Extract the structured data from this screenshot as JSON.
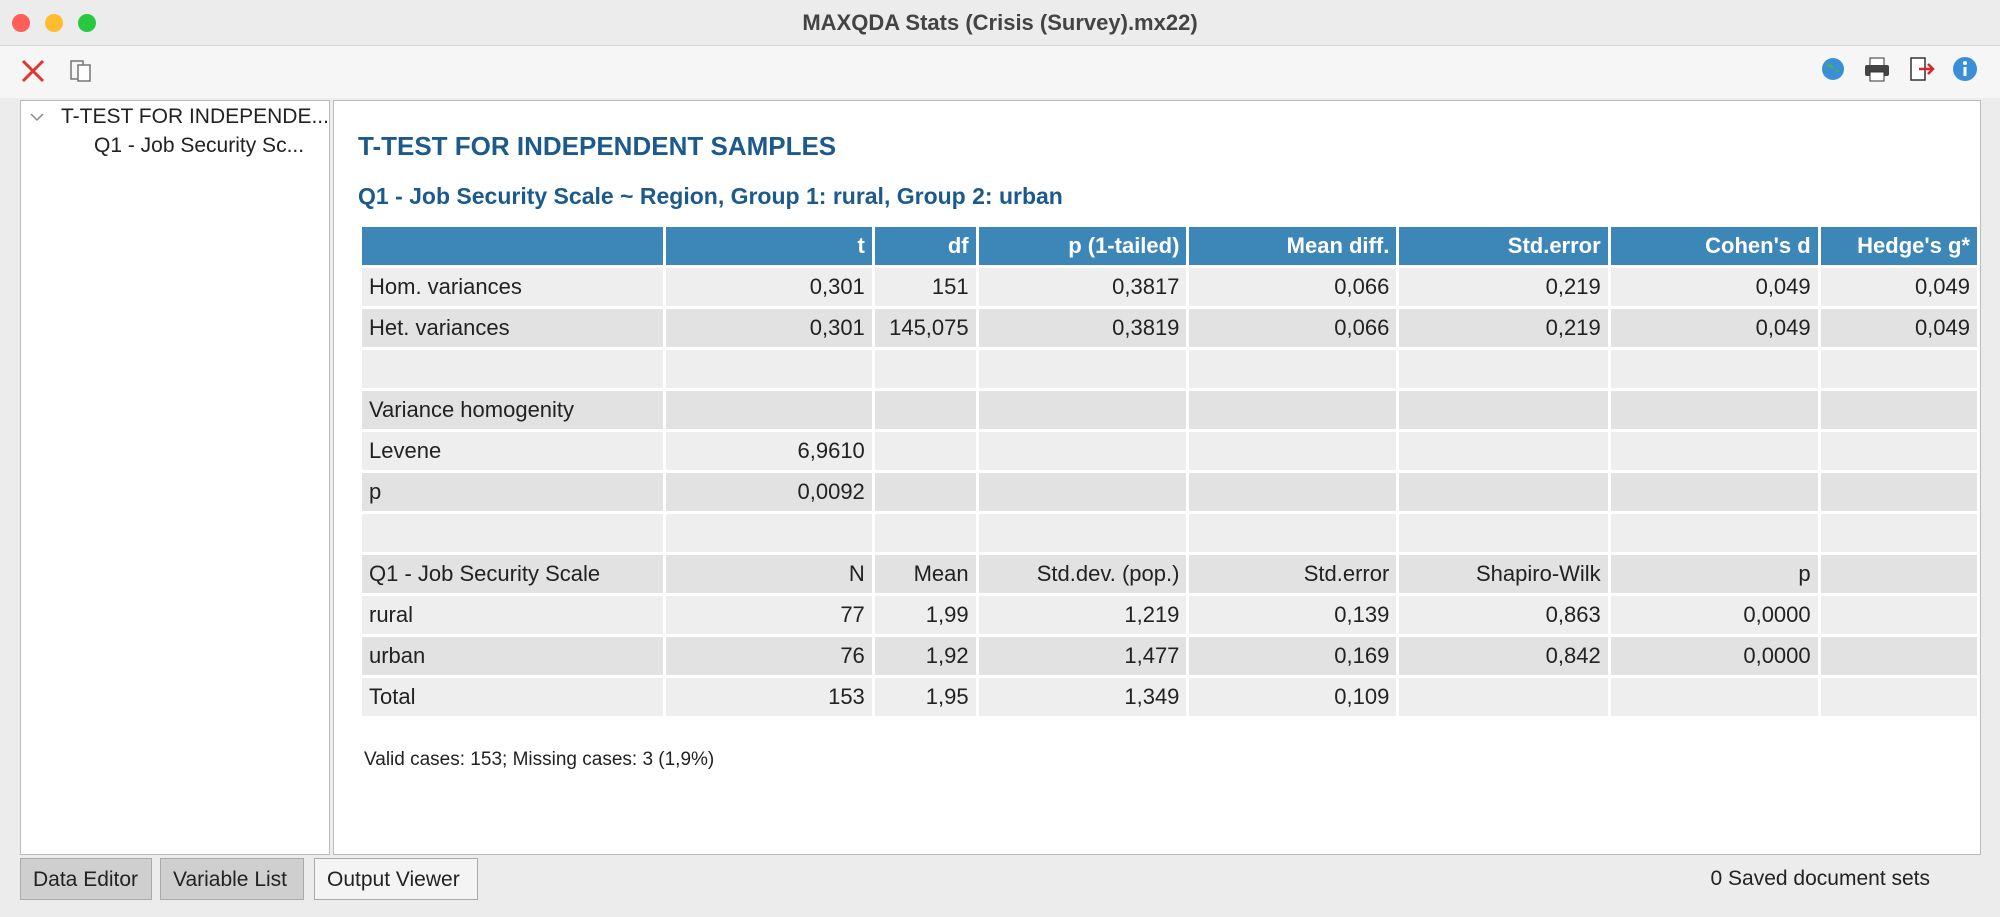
{
  "window": {
    "title": "MAXQDA Stats (Crisis (Survey).mx22)"
  },
  "tree": {
    "root": "T-TEST FOR INDEPENDE...",
    "child": "Q1 - Job Security Sc..."
  },
  "output": {
    "heading": "T-TEST FOR INDEPENDENT SAMPLES",
    "subheading": "Q1 - Job Security Scale ~ Region, Group 1: rural, Group 2: urban",
    "table": {
      "header": [
        null,
        "t",
        "df",
        "p (1-tailed)",
        "Mean diff.",
        "Std.error",
        "Cohen's d",
        "Hedge's g*"
      ],
      "rows": [
        [
          "Hom. variances",
          "0,301",
          "151",
          "0,3817",
          "0,066",
          "0,219",
          "0,049",
          "0,049"
        ],
        [
          "Het. variances",
          "0,301",
          "145,075",
          "0,3819",
          "0,066",
          "0,219",
          "0,049",
          "0,049"
        ],
        [
          null,
          null,
          null,
          null,
          null,
          null,
          null,
          null
        ],
        [
          "Variance homogenity",
          null,
          null,
          null,
          null,
          null,
          null,
          null
        ],
        [
          "Levene",
          "6,9610",
          null,
          null,
          null,
          null,
          null,
          null
        ],
        [
          "p",
          "0,0092",
          null,
          null,
          null,
          null,
          null,
          null
        ],
        [
          null,
          null,
          null,
          null,
          null,
          null,
          null,
          null
        ],
        [
          "Q1 - Job Security Scale",
          "N",
          "Mean",
          "Std.dev. (pop.)",
          "Std.error",
          "Shapiro-Wilk",
          "p",
          null
        ],
        [
          "rural",
          "77",
          "1,99",
          "1,219",
          "0,139",
          "0,863",
          "0,0000",
          null
        ],
        [
          "urban",
          "76",
          "1,92",
          "1,477",
          "0,169",
          "0,842",
          "0,0000",
          null
        ],
        [
          "Total",
          "153",
          "1,95",
          "1,349",
          "0,109",
          null,
          null,
          null
        ]
      ]
    },
    "footnote": "Valid cases: 153; Missing cases: 3 (1,9%)"
  },
  "tabs": [
    "Data Editor",
    "Variable List",
    "Output Viewer"
  ],
  "status": "0 Saved document sets"
}
